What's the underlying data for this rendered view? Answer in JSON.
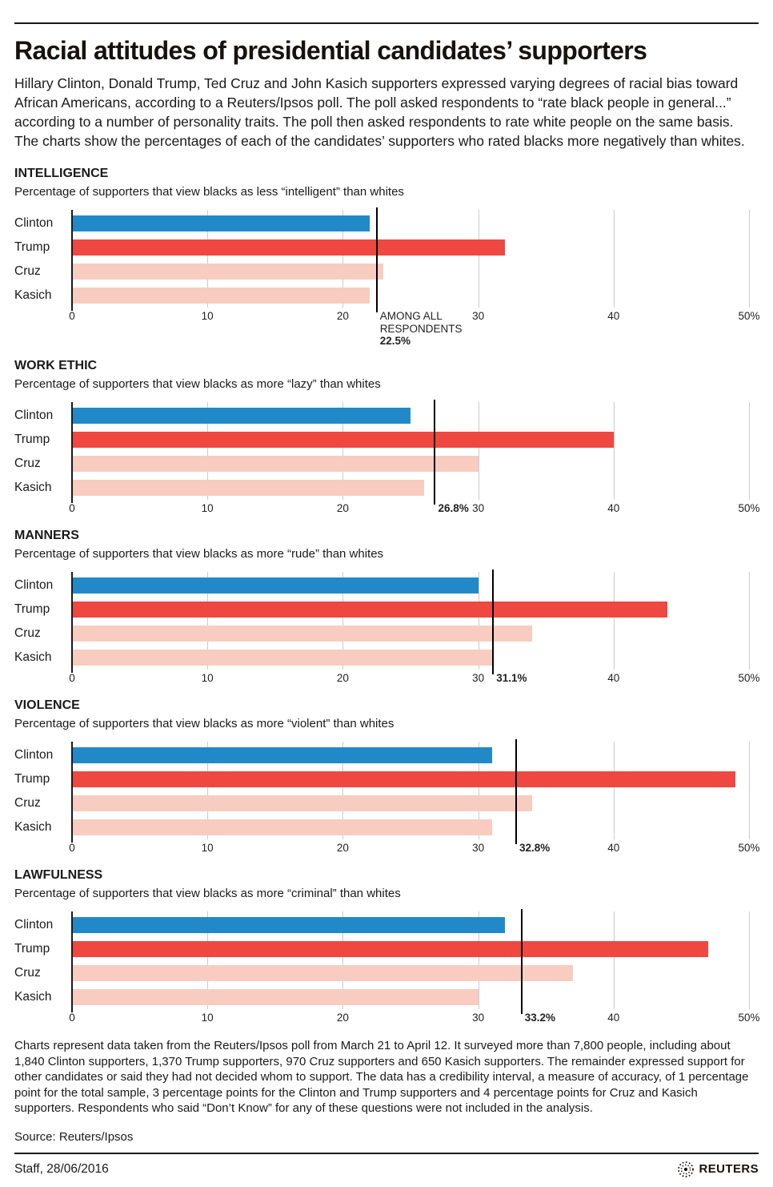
{
  "header": {
    "title": "Racial attitudes of presidential candidates’ supporters",
    "intro": "Hillary Clinton, Donald Trump, Ted Cruz and John Kasich supporters expressed varying degrees of racial bias toward African Americans, according to a Reuters/Ipsos poll. The poll asked respondents to “rate black people in general...” according to a number of personality traits. The poll then asked respondents to rate white people on the same basis. The charts show the percentages of each of the candidates’ supporters who rated blacks more negatively than whites."
  },
  "colors": {
    "clinton_blue": "#2189c8",
    "trump_red": "#ee4841",
    "pale_pink": "#f8ccc0",
    "grid": "#cccccc",
    "axis": "#1a1a1a",
    "reference": "#000000"
  },
  "chart_data": [
    {
      "id": "intelligence",
      "type": "bar",
      "title": "INTELLIGENCE",
      "subtitle": "Percentage of supporters that view blacks as less “intelligent” than whites",
      "categories": [
        "Clinton",
        "Trump",
        "Cruz",
        "Kasich"
      ],
      "values": [
        22,
        32,
        23,
        22
      ],
      "bar_colors": [
        "clinton_blue",
        "trump_red",
        "pale_pink",
        "pale_pink"
      ],
      "unit": "%",
      "xlim": [
        0,
        50
      ],
      "grid": true,
      "ticks": [
        {
          "value": 0,
          "label": "0"
        },
        {
          "value": 10,
          "label": "10"
        },
        {
          "value": 20,
          "label": "20"
        },
        {
          "value": 30,
          "label": "30"
        },
        {
          "value": 40,
          "label": "40"
        },
        {
          "value": 50,
          "label": "50%"
        }
      ],
      "reference": {
        "value": 22.5,
        "label_lines": [
          "AMONG ALL",
          "RESPONDENTS"
        ],
        "value_label": "22.5%"
      }
    },
    {
      "id": "work-ethic",
      "type": "bar",
      "title": "WORK ETHIC",
      "subtitle": "Percentage of supporters that view blacks as more “lazy” than whites",
      "categories": [
        "Clinton",
        "Trump",
        "Cruz",
        "Kasich"
      ],
      "values": [
        25,
        40,
        30,
        26
      ],
      "bar_colors": [
        "clinton_blue",
        "trump_red",
        "pale_pink",
        "pale_pink"
      ],
      "unit": "%",
      "xlim": [
        0,
        50
      ],
      "grid": true,
      "ticks": [
        {
          "value": 0,
          "label": "0"
        },
        {
          "value": 10,
          "label": "10"
        },
        {
          "value": 20,
          "label": "20"
        },
        {
          "value": 30,
          "label": "30"
        },
        {
          "value": 40,
          "label": "40"
        },
        {
          "value": 50,
          "label": "50%"
        }
      ],
      "reference": {
        "value": 26.8,
        "value_label": "26.8%"
      }
    },
    {
      "id": "manners",
      "type": "bar",
      "title": "MANNERS",
      "subtitle": "Percentage of supporters that view blacks as more “rude” than whites",
      "categories": [
        "Clinton",
        "Trump",
        "Cruz",
        "Kasich"
      ],
      "values": [
        30,
        44,
        34,
        31
      ],
      "bar_colors": [
        "clinton_blue",
        "trump_red",
        "pale_pink",
        "pale_pink"
      ],
      "unit": "%",
      "xlim": [
        0,
        50
      ],
      "grid": true,
      "ticks": [
        {
          "value": 0,
          "label": "0"
        },
        {
          "value": 10,
          "label": "10"
        },
        {
          "value": 20,
          "label": "20"
        },
        {
          "value": 30,
          "label": "30"
        },
        {
          "value": 40,
          "label": "40"
        },
        {
          "value": 50,
          "label": "50%"
        }
      ],
      "reference": {
        "value": 31.1,
        "value_label": "31.1%"
      }
    },
    {
      "id": "violence",
      "type": "bar",
      "title": "VIOLENCE",
      "subtitle": "Percentage of supporters that view blacks as more “violent” than whites",
      "categories": [
        "Clinton",
        "Trump",
        "Cruz",
        "Kasich"
      ],
      "values": [
        31,
        49,
        34,
        31
      ],
      "bar_colors": [
        "clinton_blue",
        "trump_red",
        "pale_pink",
        "pale_pink"
      ],
      "unit": "%",
      "xlim": [
        0,
        50
      ],
      "grid": true,
      "ticks": [
        {
          "value": 0,
          "label": "0"
        },
        {
          "value": 10,
          "label": "10"
        },
        {
          "value": 20,
          "label": "20"
        },
        {
          "value": 30,
          "label": "30"
        },
        {
          "value": 40,
          "label": "40"
        },
        {
          "value": 50,
          "label": "50%"
        }
      ],
      "reference": {
        "value": 32.8,
        "value_label": "32.8%"
      }
    },
    {
      "id": "lawfulness",
      "type": "bar",
      "title": "LAWFULNESS",
      "subtitle": "Percentage of supporters that view blacks as more “criminal” than whites",
      "categories": [
        "Clinton",
        "Trump",
        "Cruz",
        "Kasich"
      ],
      "values": [
        32,
        47,
        37,
        30
      ],
      "bar_colors": [
        "clinton_blue",
        "trump_red",
        "pale_pink",
        "pale_pink"
      ],
      "unit": "%",
      "xlim": [
        0,
        50
      ],
      "grid": true,
      "ticks": [
        {
          "value": 0,
          "label": "0"
        },
        {
          "value": 10,
          "label": "10"
        },
        {
          "value": 20,
          "label": "20"
        },
        {
          "value": 30,
          "label": "30"
        },
        {
          "value": 40,
          "label": "40"
        },
        {
          "value": 50,
          "label": "50%"
        }
      ],
      "reference": {
        "value": 33.2,
        "value_label": "33.2%"
      }
    }
  ],
  "footer": {
    "note": "Charts represent data taken from the Reuters/Ipsos poll from March 21 to April 12. It surveyed more than 7,800 people, including about 1,840 Clinton supporters, 1,370 Trump supporters, 970 Cruz supporters and 650 Kasich supporters. The remainder expressed support for other candidates or said they had not decided whom to support. The data has a credibility interval, a measure of accuracy, of 1 percentage point for the total sample, 3 percentage points for the Clinton and Trump supporters and 4 percentage points for Cruz and Kasich supporters. Respondents who said “Don’t Know” for any of these questions were not included in the analysis.",
    "source": "Source: Reuters/Ipsos",
    "credit": "Staff, 28/06/2016",
    "logo_text": "REUTERS"
  }
}
